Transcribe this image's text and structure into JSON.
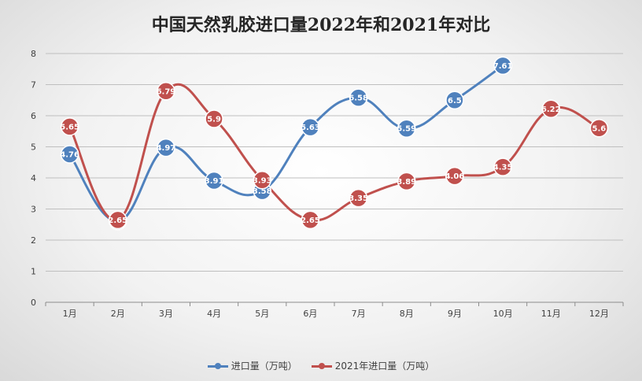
{
  "chart_data": {
    "type": "line",
    "title": "中国天然乳胶进口量2022年和2021年对比",
    "categories": [
      "1月",
      "2月",
      "3月",
      "4月",
      "5月",
      "6月",
      "7月",
      "8月",
      "9月",
      "10月",
      "11月",
      "12月"
    ],
    "ylim": [
      0,
      8
    ],
    "yticks": [
      0,
      1,
      2,
      3,
      4,
      5,
      6,
      7,
      8
    ],
    "grid": true,
    "legend_position": "bottom",
    "series": [
      {
        "name": "进口量（万吨）",
        "color": "#4f81bd",
        "values": [
          4.76,
          2.61,
          4.97,
          3.91,
          3.58,
          5.63,
          6.58,
          5.59,
          6.5,
          7.61,
          null,
          null
        ],
        "labels": [
          "4.76",
          "2.61",
          "4.97",
          "3.91",
          "3.58",
          "5.63",
          "6.58",
          "5.59",
          "6.5",
          "7.61",
          "",
          ""
        ]
      },
      {
        "name": "2021年进口量（万吨）",
        "color": "#c0504d",
        "values": [
          5.65,
          2.65,
          6.79,
          5.9,
          3.93,
          2.65,
          3.35,
          3.89,
          4.06,
          4.35,
          6.22,
          5.6
        ],
        "labels": [
          "5.65",
          "2.65",
          "6.79",
          "5.9",
          "3.93",
          "2.65",
          "3.35",
          "3.89",
          "4.06",
          "4.35",
          "6.22",
          "5.6"
        ]
      }
    ]
  }
}
